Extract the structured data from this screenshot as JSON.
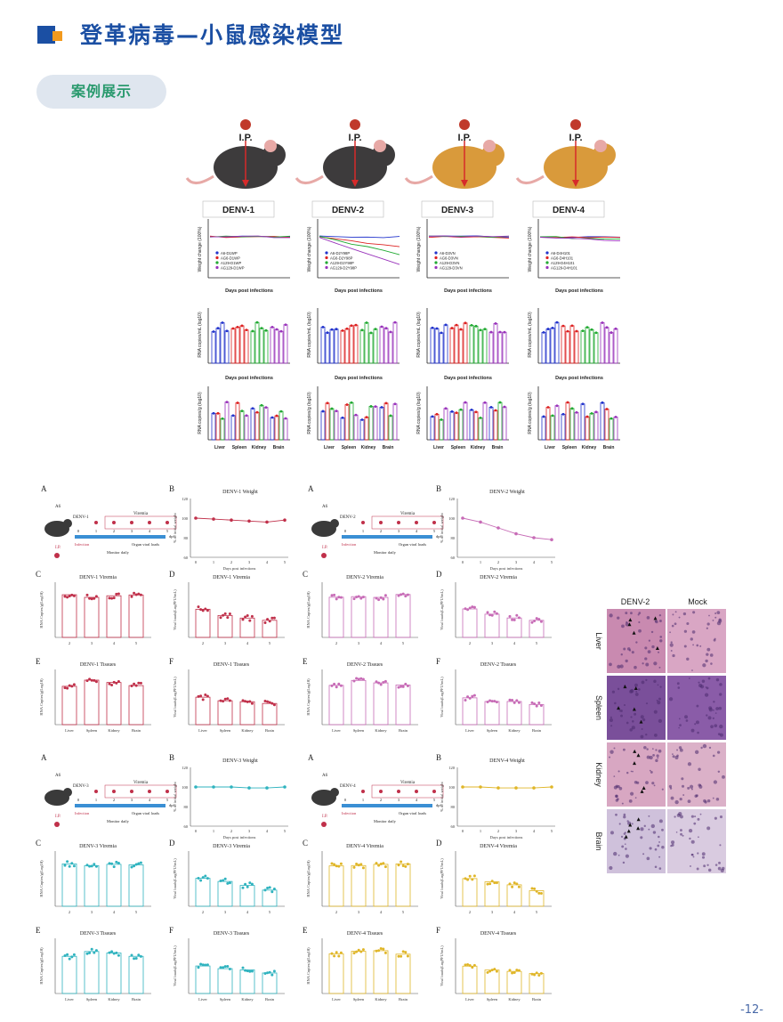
{
  "header": {
    "title": "登革病毒—小鼠感染模型",
    "tag": "案例展示"
  },
  "page_number": "-12-",
  "top_figure": {
    "injection_label": "I.P.",
    "serotypes": [
      "DENV-1",
      "DENV-2",
      "DENV-3",
      "DENV-4"
    ],
    "weight_ylabel": "Weight change (100%)",
    "weight_xlabel": "Days post infections",
    "viremia_ylabel": "RNA copies/mL (log10)",
    "viremia_xlabel": "Days post infections",
    "tissue_ylabel": "RNA copies/g (log10)",
    "tissues": [
      "Liver",
      "Spleen",
      "Kidney",
      "Brain"
    ],
    "legends": [
      [
        "A6-D1WP",
        "AG6-D1WP",
        "A129-D1WP",
        "AG129-D1WP"
      ],
      [
        "A6-D2Y98P",
        "AG6-D2Y98P",
        "A129-D2Y98P",
        "AG129-D2Y98P"
      ],
      [
        "A6-D3VN",
        "AG6-D3VN",
        "A129-D3VN",
        "AG129-D3VN"
      ],
      [
        "A6-D4H101",
        "AG6-D4H101",
        "A129-D4H101",
        "AG129-D4H101"
      ]
    ]
  },
  "mid_figure": {
    "panel_letters": [
      "A",
      "B",
      "C",
      "D",
      "E",
      "F"
    ],
    "schematic": {
      "mouse_label": "A6",
      "ip": "I.P.",
      "viremia": "Viremia",
      "infection": "Infection",
      "organ": "Organ viral loads",
      "monitor": "Monitor daily",
      "dpi": "dpi",
      "ticks": [
        "0",
        "1",
        "2",
        "3",
        "4",
        "5"
      ]
    },
    "weight_ylabel": "% of initial weight",
    "weight_xlabel": "Days post infections",
    "rna_ylabel": "RNA Copies/g(Log10)",
    "viral_ylabel": "Viral loads(LogPFU/mL)",
    "tissues": [
      "Liver",
      "Spleen",
      "Kidney",
      "Brain"
    ],
    "days": [
      "2",
      "3",
      "4",
      "5"
    ],
    "panels": [
      {
        "name": "DENV-1",
        "weight_title": "DENV-1 Weight",
        "viremia_title": "DENV-1 Viremia",
        "tissues_title": "DENV-1 Tissues",
        "color": "#c0304a"
      },
      {
        "name": "DENV-2",
        "weight_title": "DENV-2 Weight",
        "viremia_title": "DENV-2 Viremia",
        "tissues_title": "DENV-2 Tissues",
        "color": "#c76bb6"
      },
      {
        "name": "DENV-3",
        "weight_title": "DENV-3 Weight",
        "viremia_title": "DENV-3 Viremia",
        "tissues_title": "DENV-3 Tissues",
        "color": "#2fb3bf"
      },
      {
        "name": "DENV-4",
        "weight_title": "DENV-4 Weight",
        "viremia_title": "DENV-4 Viremia",
        "tissues_title": "DENV-4 Tissues",
        "color": "#e0b628"
      }
    ]
  },
  "histology": {
    "columns": [
      "DENV-2",
      "Mock"
    ],
    "rows": [
      "Liver",
      "Spleen",
      "Kidney",
      "Brain"
    ]
  }
}
